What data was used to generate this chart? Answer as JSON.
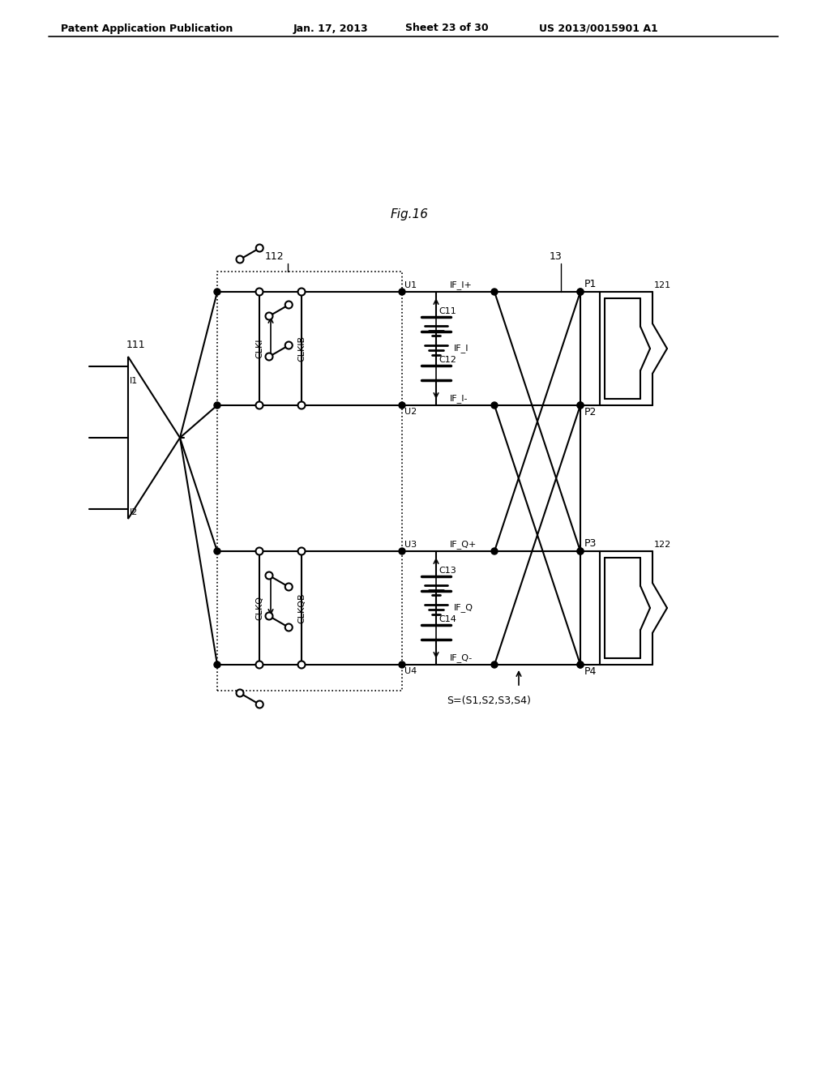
{
  "bg_color": "#ffffff",
  "header_text": "Patent Application Publication",
  "header_date": "Jan. 17, 2013",
  "header_sheet": "Sheet 23 of 30",
  "header_patent": "US 2013/0015901 A1",
  "fig_label": "Fig.16",
  "label_112": "112",
  "label_13": "13",
  "label_111": "111",
  "label_U1": "U1",
  "label_U2": "U2",
  "label_U3": "U3",
  "label_U4": "U4",
  "label_P1": "P1",
  "label_P2": "P2",
  "label_P3": "P3",
  "label_P4": "P4",
  "label_I1": "I1",
  "label_I2": "I2",
  "label_C11": "C11",
  "label_C12": "C12",
  "label_C13": "C13",
  "label_C14": "C14",
  "label_IF_Ip": "IF_I+",
  "label_IF_I": "IF_I",
  "label_IF_Im": "IF_I-",
  "label_IF_Qp": "IF_Q+",
  "label_IF_Q": "IF_Q",
  "label_IF_Qm": "IF_Q-",
  "label_CLKI": "CLKI",
  "label_CLKIB": "CLKIB",
  "label_CLKQ": "CLKQ",
  "label_CLKQB": "CLKQB",
  "label_121": "121",
  "label_122": "122",
  "label_S": "S=(S1,S2,S3,S4)"
}
